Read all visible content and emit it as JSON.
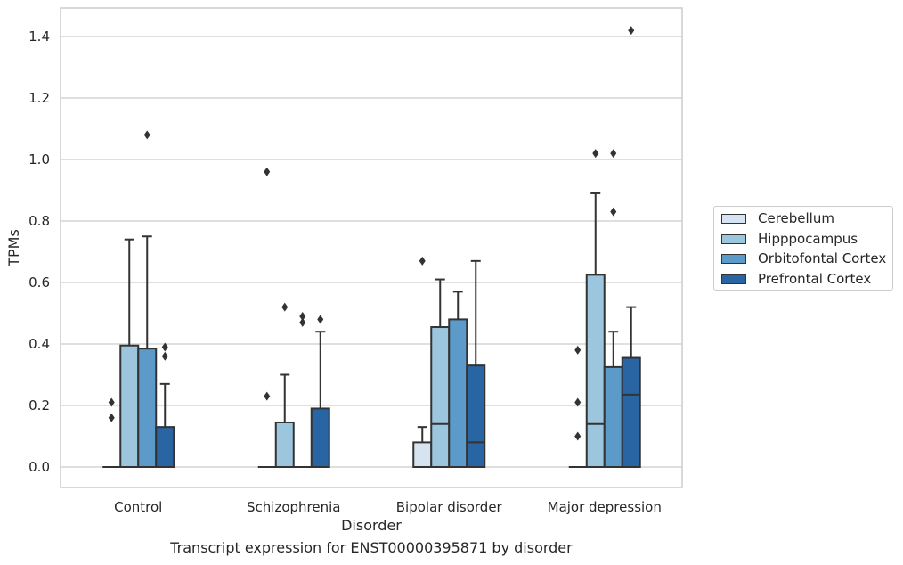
{
  "chart_data": {
    "type": "box",
    "xlabel": "Disorder",
    "ylabel": "TPMs",
    "caption": "Transcript expression for ENST00000395871 by disorder",
    "ylim": [
      -0.07,
      1.49
    ],
    "yticks": [
      "0.0",
      "0.2",
      "0.4",
      "0.6",
      "0.8",
      "1.0",
      "1.2",
      "1.4"
    ],
    "grid": true,
    "legend_position": "right",
    "categories": [
      "Control",
      "Schizophrenia",
      "Bipolar disorder",
      "Major depression"
    ],
    "series": [
      {
        "name": "Cerebellum",
        "color": "#d6e4f2",
        "boxes": [
          {
            "q1": 0,
            "median": 0,
            "q3": 0,
            "whisker_low": 0,
            "whisker_high": 0,
            "outliers": [
              0.16,
              0.21
            ]
          },
          {
            "q1": 0,
            "median": 0,
            "q3": 0,
            "whisker_low": 0,
            "whisker_high": 0,
            "outliers": [
              0.23,
              0.96
            ]
          },
          {
            "q1": 0,
            "median": 0,
            "q3": 0.08,
            "whisker_low": 0,
            "whisker_high": 0.13,
            "outliers": [
              0.67
            ]
          },
          {
            "q1": 0,
            "median": 0,
            "q3": 0,
            "whisker_low": 0,
            "whisker_high": 0,
            "outliers": [
              0.1,
              0.21,
              0.38
            ]
          }
        ]
      },
      {
        "name": "Hipppocampus",
        "color": "#9cc5de",
        "boxes": [
          {
            "q1": 0,
            "median": 0,
            "q3": 0.395,
            "whisker_low": 0,
            "whisker_high": 0.74,
            "outliers": []
          },
          {
            "q1": 0,
            "median": 0,
            "q3": 0.145,
            "whisker_low": 0,
            "whisker_high": 0.3,
            "outliers": [
              0.52
            ]
          },
          {
            "q1": 0,
            "median": 0.14,
            "q3": 0.455,
            "whisker_low": 0,
            "whisker_high": 0.61,
            "outliers": []
          },
          {
            "q1": 0,
            "median": 0.14,
            "q3": 0.625,
            "whisker_low": 0,
            "whisker_high": 0.89,
            "outliers": [
              1.02
            ]
          }
        ]
      },
      {
        "name": "Orbitofontal Cortex",
        "color": "#5b9ac9",
        "boxes": [
          {
            "q1": 0,
            "median": 0,
            "q3": 0.385,
            "whisker_low": 0,
            "whisker_high": 0.75,
            "outliers": [
              1.08
            ]
          },
          {
            "q1": 0,
            "median": 0,
            "q3": 0,
            "whisker_low": 0,
            "whisker_high": 0,
            "outliers": [
              0.47,
              0.49
            ]
          },
          {
            "q1": 0,
            "median": 0,
            "q3": 0.48,
            "whisker_low": 0,
            "whisker_high": 0.57,
            "outliers": []
          },
          {
            "q1": 0,
            "median": 0,
            "q3": 0.325,
            "whisker_low": 0,
            "whisker_high": 0.44,
            "outliers": [
              0.83,
              1.02
            ]
          }
        ]
      },
      {
        "name": "Prefrontal Cortex",
        "color": "#2964a3",
        "boxes": [
          {
            "q1": 0,
            "median": 0,
            "q3": 0.13,
            "whisker_low": 0,
            "whisker_high": 0.27,
            "outliers": [
              0.36,
              0.39
            ]
          },
          {
            "q1": 0,
            "median": 0,
            "q3": 0.19,
            "whisker_low": 0,
            "whisker_high": 0.44,
            "outliers": [
              0.48
            ]
          },
          {
            "q1": 0,
            "median": 0.08,
            "q3": 0.33,
            "whisker_low": 0,
            "whisker_high": 0.67,
            "outliers": []
          },
          {
            "q1": 0,
            "median": 0.235,
            "q3": 0.355,
            "whisker_low": 0,
            "whisker_high": 0.52,
            "outliers": [
              1.42
            ]
          }
        ]
      }
    ]
  }
}
